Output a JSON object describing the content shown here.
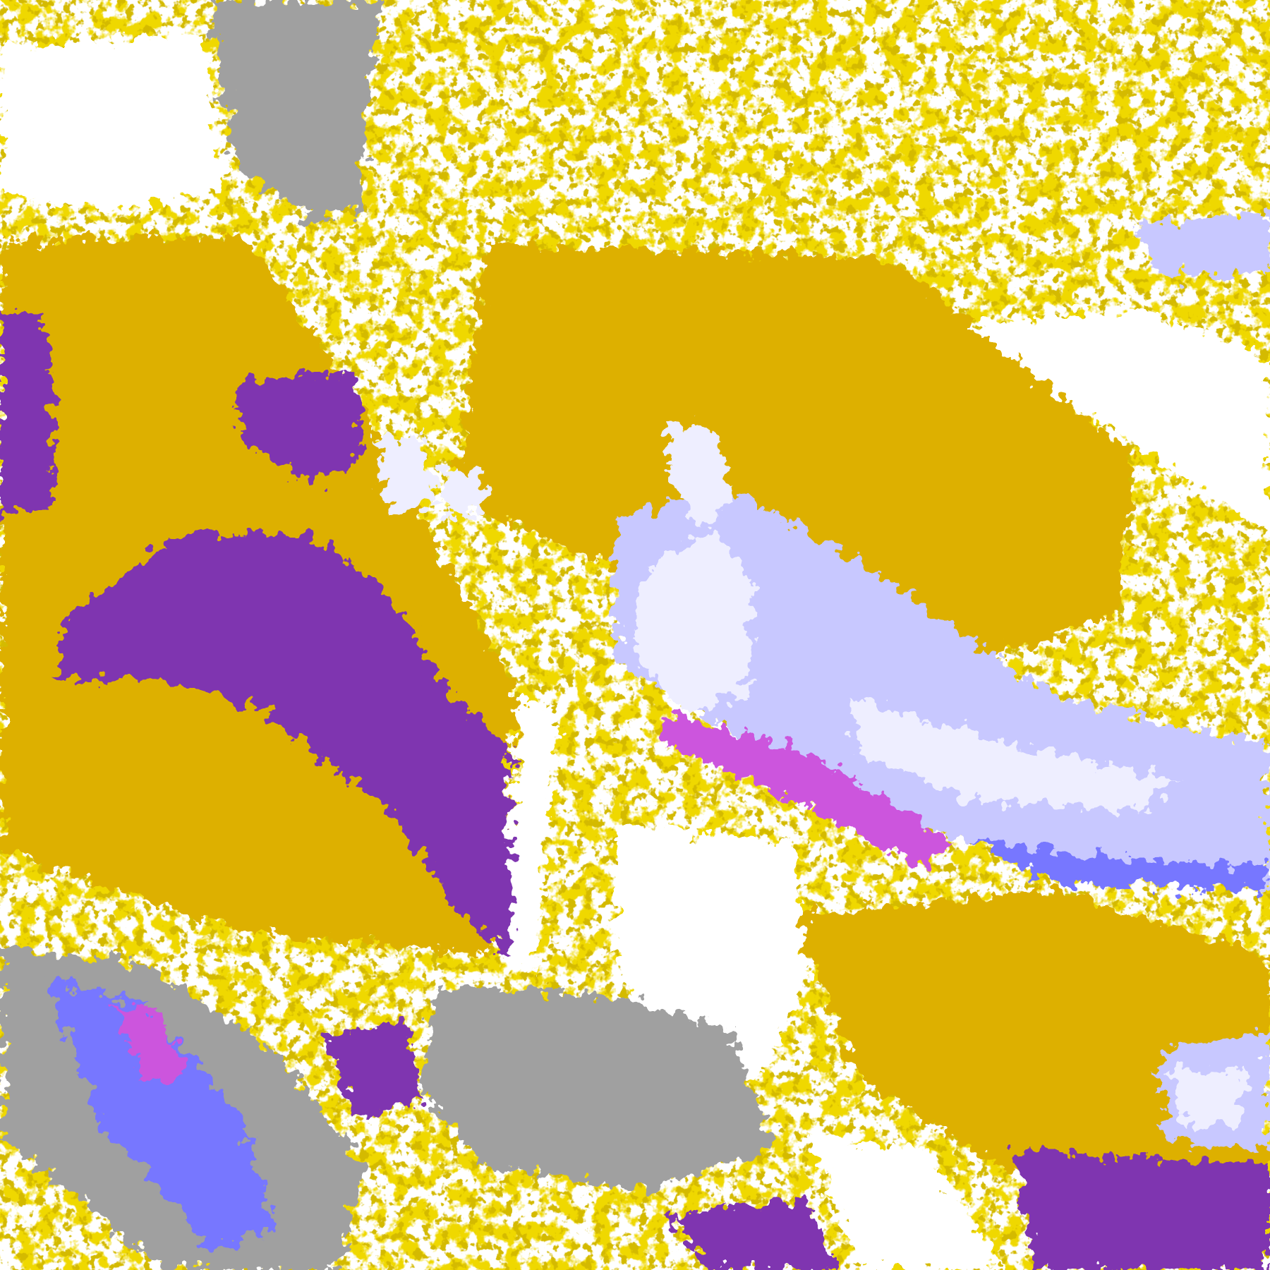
{
  "palette": {
    "background": "#FFFFFF",
    "gold": "#DDB000",
    "dark_gold": "#A87D00",
    "purple": "#7F35B0",
    "magenta": "#CC55DD",
    "lavender": "#EEEEFF",
    "periwinkle": "#C8C8FF",
    "blue": "#7777FF",
    "gray": "#A0A0A0",
    "light_gray": "#C4C4C4"
  }
}
